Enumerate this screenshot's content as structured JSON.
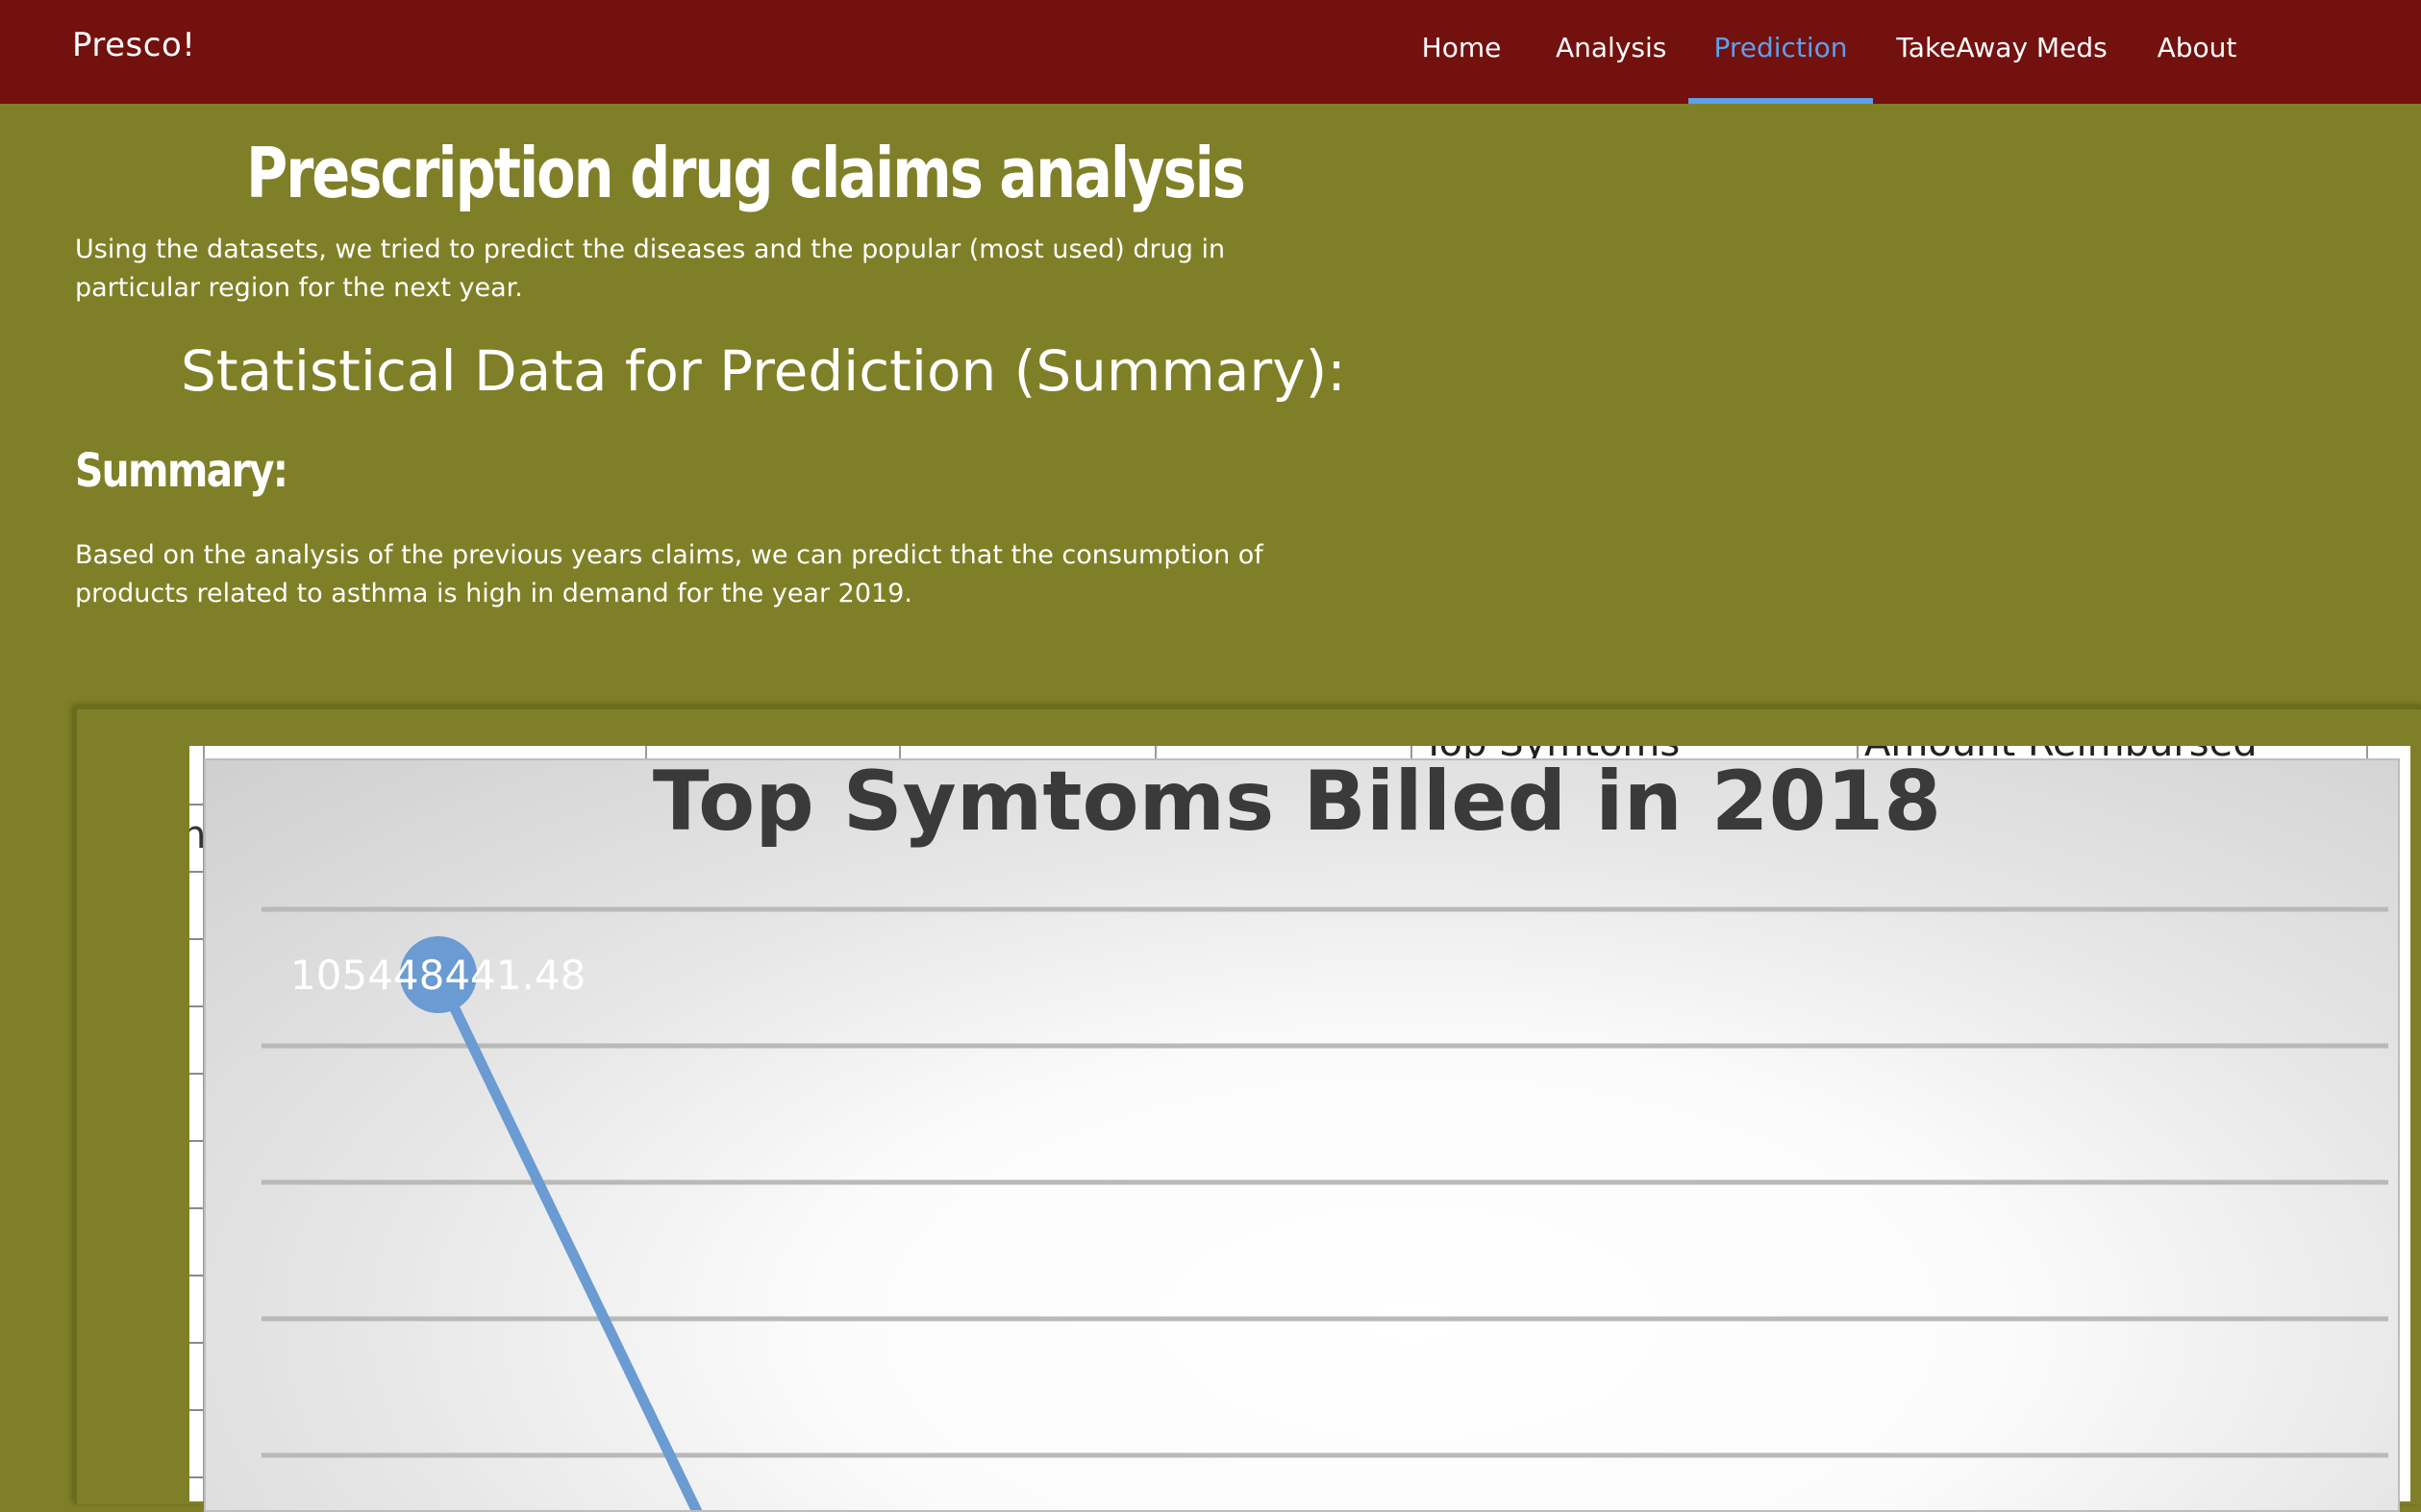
{
  "nav": {
    "brand": "Presco!",
    "items": [
      {
        "label": "Home",
        "active": false
      },
      {
        "label": "Analysis",
        "active": false
      },
      {
        "label": "Prediction",
        "active": true
      },
      {
        "label": "TakeAway Meds",
        "active": false
      },
      {
        "label": "About",
        "active": false
      }
    ],
    "active_color": "#5ea0ea",
    "bar_color": "#73110f"
  },
  "page": {
    "background_color": "#7f7f27",
    "title": "Prescription drug claims analysis",
    "intro": "Using the datasets, we tried to predict the diseases and the popular (most used) drug in particular region for the next year.",
    "section_heading": "Statistical Data for Prediction (Summary):",
    "summary_heading": "Summary:",
    "summary_text": "Based on the analysis of the previous years claims, we can predict that the consumption of products related to asthma is high in demand for the year 2019."
  },
  "sheet": {
    "column_headers": [
      "Top Symtoms",
      "Amount Reimbursed"
    ],
    "cell_fragment": "n"
  },
  "chart_data": {
    "type": "line",
    "title": "Top Symtoms Billed in 2018",
    "series": [
      {
        "color": "#6a9bd2",
        "points": [
          {
            "label": "105448441.48",
            "value": 105448441.48
          }
        ]
      }
    ],
    "grid": true,
    "note": "Chart is cropped; only the first data point and the start of the descending line are visible."
  }
}
